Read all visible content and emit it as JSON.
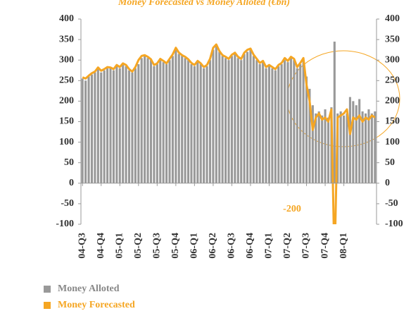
{
  "chart_data": {
    "type": "bar-line",
    "title": "Money Forecasted vs Money Alloted (€bn)",
    "categories": [
      "04-Q3",
      null,
      null,
      null,
      null,
      null,
      "04-Q4",
      null,
      null,
      null,
      null,
      null,
      "05-Q1",
      null,
      null,
      null,
      null,
      null,
      "05-Q2",
      null,
      null,
      null,
      null,
      null,
      "05-Q3",
      null,
      null,
      null,
      null,
      null,
      "05-Q4",
      null,
      null,
      null,
      null,
      null,
      "06-Q1",
      null,
      null,
      null,
      null,
      null,
      "06-Q2",
      null,
      null,
      null,
      null,
      null,
      "06-Q3",
      null,
      null,
      null,
      null,
      null,
      "06-Q4",
      null,
      null,
      null,
      null,
      null,
      "07-Q1",
      null,
      null,
      null,
      null,
      null,
      "07-Q2",
      null,
      null,
      null,
      null,
      null,
      "07-Q3",
      null,
      null,
      null,
      null,
      null,
      "07-Q4",
      null,
      null,
      null,
      null,
      null,
      "08-Q1",
      null,
      null,
      null,
      null,
      null,
      null,
      null,
      null,
      null,
      null
    ],
    "series": [
      {
        "name": "Money Alloted",
        "color": "#999999",
        "kind": "bar",
        "axis": "y",
        "values": [
          255,
          250,
          260,
          265,
          270,
          280,
          270,
          275,
          280,
          280,
          275,
          285,
          280,
          290,
          285,
          275,
          270,
          280,
          290,
          305,
          310,
          305,
          300,
          285,
          290,
          300,
          295,
          290,
          300,
          310,
          325,
          315,
          310,
          305,
          300,
          290,
          285,
          295,
          290,
          280,
          285,
          300,
          325,
          335,
          320,
          310,
          305,
          300,
          310,
          315,
          305,
          300,
          315,
          320,
          325,
          310,
          300,
          290,
          295,
          280,
          285,
          280,
          275,
          285,
          290,
          300,
          295,
          305,
          300,
          280,
          290,
          300,
          260,
          230,
          190,
          170,
          175,
          165,
          180,
          160,
          185,
          345,
          170,
          175,
          165,
          170,
          210,
          200,
          190,
          205,
          175,
          170,
          180,
          170,
          175
        ]
      },
      {
        "name": "Money Forecasted",
        "color": "#f5a623",
        "kind": "line",
        "axis": "y2",
        "values": [
          258,
          255,
          262,
          268,
          272,
          282,
          274,
          278,
          283,
          282,
          278,
          288,
          283,
          292,
          288,
          278,
          272,
          283,
          300,
          310,
          312,
          308,
          302,
          288,
          292,
          303,
          298,
          292,
          303,
          314,
          330,
          318,
          312,
          308,
          302,
          293,
          288,
          298,
          292,
          283,
          288,
          303,
          330,
          338,
          322,
          312,
          308,
          303,
          313,
          318,
          308,
          303,
          318,
          325,
          328,
          313,
          303,
          293,
          298,
          283,
          288,
          283,
          278,
          288,
          293,
          305,
          298,
          308,
          303,
          283,
          293,
          305,
          240,
          200,
          130,
          160,
          170,
          155,
          160,
          150,
          180,
          -200,
          160,
          165,
          170,
          180,
          120,
          160,
          155,
          165,
          150,
          160,
          155,
          165,
          160
        ]
      }
    ],
    "annotation": "-200",
    "ylim": [
      -100,
      400
    ],
    "yticks": [
      -100,
      -50,
      0,
      50,
      100,
      150,
      200,
      250,
      300,
      350,
      400
    ],
    "y2lim": [
      -100,
      400
    ],
    "y2ticks": [
      -100,
      -50,
      0,
      50,
      100,
      150,
      200,
      250,
      300,
      350,
      400
    ]
  }
}
